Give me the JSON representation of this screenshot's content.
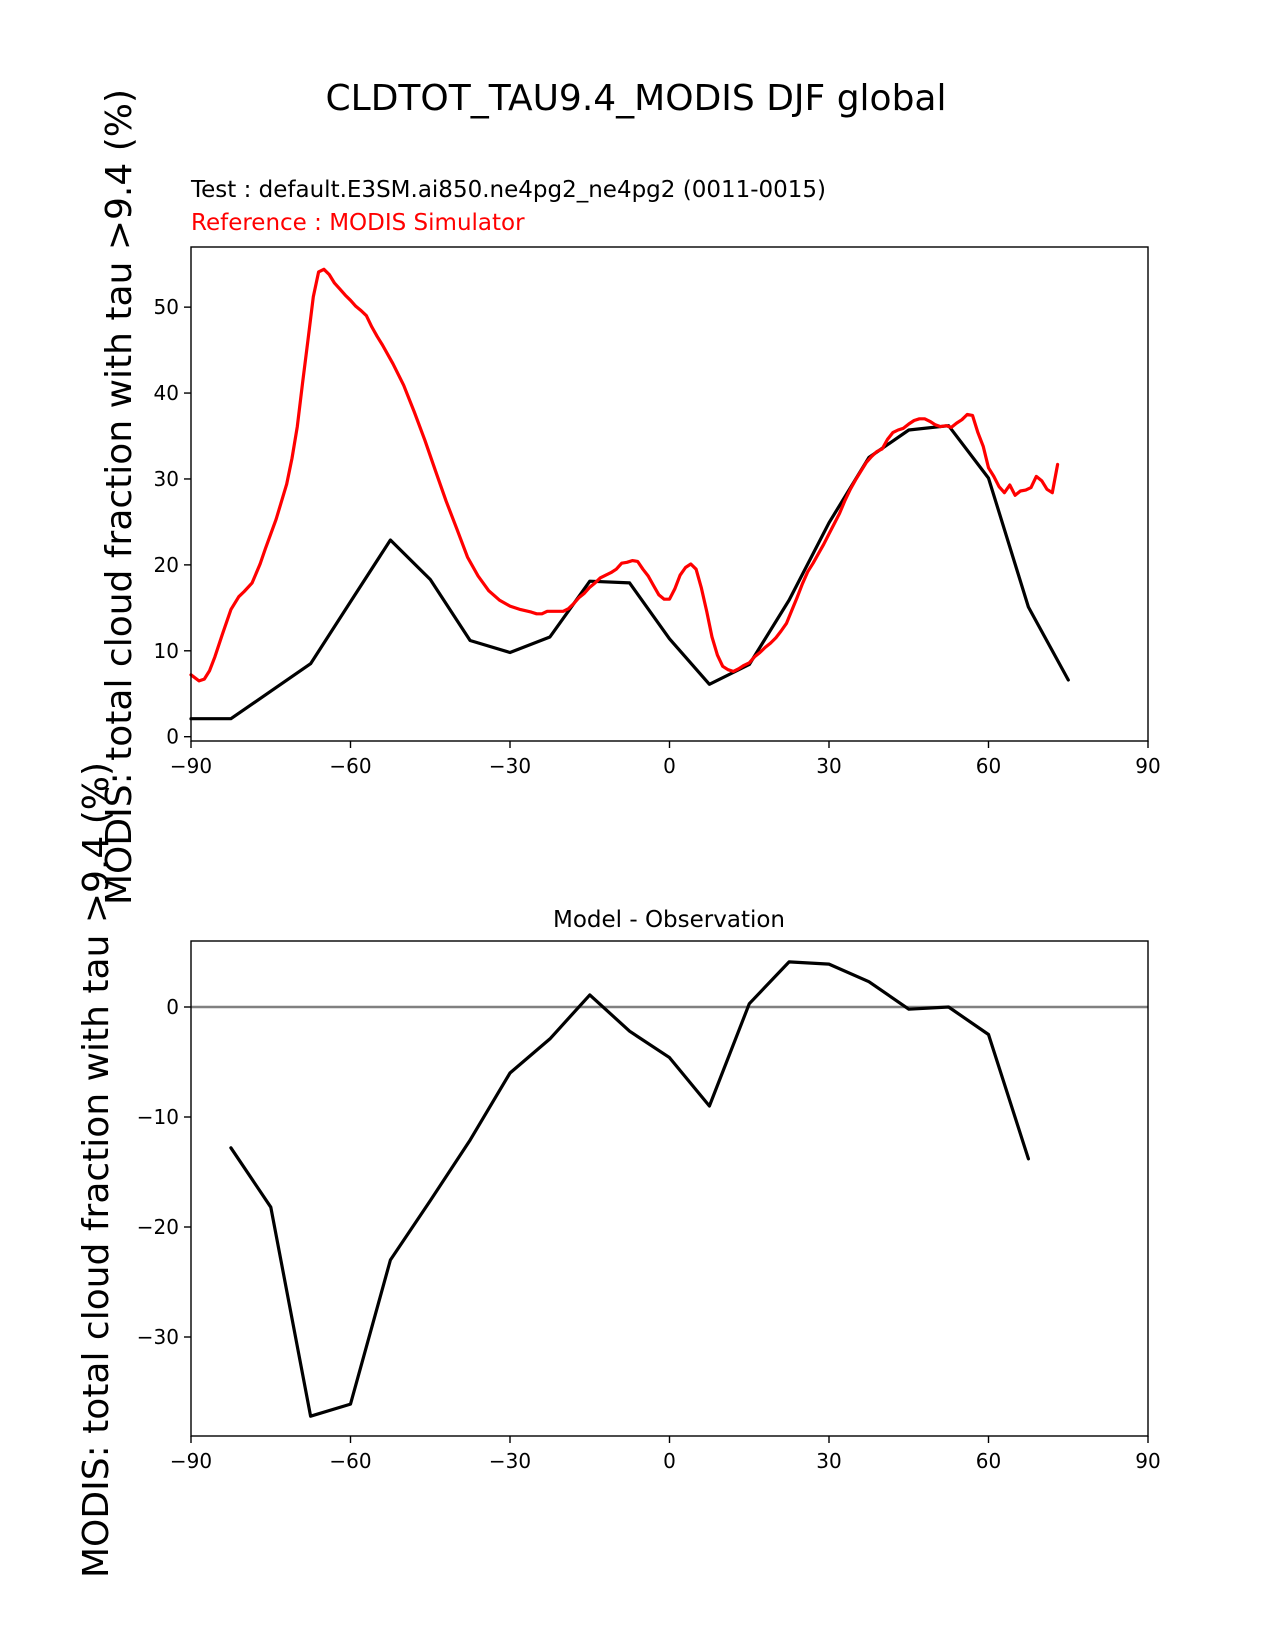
{
  "figure": {
    "title": "CLDTOT_TAU9.4_MODIS DJF global",
    "ylabel": "MODIS: total cloud fraction with tau >9.4 (%)"
  },
  "chart_data": [
    {
      "type": "line",
      "test_label": "Test : default.E3SM.ai850.ne4pg2_ne4pg2 (0011-0015)",
      "reference_label": "Reference : MODIS Simulator",
      "ylabel": "MODIS: total cloud fraction with tau >9.4 (%)",
      "xlim": [
        -90,
        90
      ],
      "ylim": [
        -0.5,
        57
      ],
      "xticks": [
        "−90",
        "−60",
        "−30",
        "0",
        "30",
        "60",
        "90"
      ],
      "yticks": [
        "0",
        "10",
        "20",
        "30",
        "40",
        "50"
      ],
      "series": [
        {
          "color": "#000000",
          "x": [
            -90,
            -82.5,
            -75,
            -67.5,
            -60,
            -52.5,
            -45,
            -37.5,
            -30,
            -22.5,
            -15,
            -7.5,
            0,
            7.5,
            15,
            22.5,
            30,
            37.5,
            45,
            52.5,
            60,
            67.5,
            75
          ],
          "y": [
            2.1,
            2.1,
            5.3,
            8.5,
            15.7,
            22.9,
            18.3,
            11.2,
            9.8,
            11.6,
            18.1,
            17.9,
            11.4,
            6.1,
            8.4,
            15.9,
            24.9,
            32.5,
            35.7,
            36.2,
            30.1,
            15.1,
            6.6
          ]
        },
        {
          "color": "#ff0000",
          "x": [
            -90,
            -88.5,
            -87.5,
            -86.5,
            -85.5,
            -84,
            -82.5,
            -81,
            -80,
            -78.5,
            -77,
            -76,
            -74,
            -72,
            -71,
            -70,
            -69,
            -68,
            -67,
            -66,
            -65,
            -64,
            -63,
            -62,
            -61,
            -60,
            -59,
            -58,
            -57,
            -56,
            -55,
            -54,
            -52,
            -50,
            -48,
            -46,
            -44,
            -42,
            -40,
            -38,
            -36,
            -34,
            -32,
            -30,
            -28,
            -26,
            -25,
            -24,
            -23,
            -22,
            -21,
            -20,
            -19,
            -18,
            -17,
            -16,
            -15,
            -14,
            -13,
            -12,
            -11,
            -10,
            -9,
            -8,
            -7,
            -6,
            -5,
            -4,
            -3,
            -2,
            -1,
            0,
            1,
            2,
            3,
            4,
            5,
            6,
            7,
            8,
            9,
            10,
            11,
            12,
            13,
            14,
            15,
            16,
            17,
            18,
            19,
            20,
            21,
            22,
            23,
            24,
            25,
            26,
            27,
            28,
            29,
            30,
            31,
            32,
            33,
            34,
            35,
            36,
            37,
            38,
            39,
            40,
            41,
            42,
            43,
            44,
            45,
            46,
            47,
            48,
            49,
            50,
            51,
            52,
            53,
            54,
            55,
            56,
            57,
            58,
            59,
            60,
            61,
            62,
            63,
            64,
            65,
            66,
            67,
            68,
            69,
            70,
            71,
            72,
            73
          ],
          "y": [
            7.2,
            6.5,
            6.7,
            7.7,
            9.3,
            12.1,
            14.8,
            16.3,
            16.9,
            17.9,
            20.1,
            21.9,
            25.3,
            29.4,
            32.4,
            36.1,
            41.2,
            46.2,
            51.2,
            54.1,
            54.4,
            53.8,
            52.8,
            52.1,
            51.4,
            50.8,
            50.1,
            49.6,
            49.0,
            47.7,
            46.6,
            45.6,
            43.4,
            40.9,
            37.8,
            34.5,
            30.9,
            27.4,
            24.2,
            20.9,
            18.7,
            17.0,
            15.9,
            15.2,
            14.8,
            14.5,
            14.3,
            14.3,
            14.6,
            14.6,
            14.6,
            14.6,
            14.9,
            15.5,
            16.2,
            16.7,
            17.4,
            17.9,
            18.5,
            18.8,
            19.1,
            19.5,
            20.2,
            20.3,
            20.5,
            20.4,
            19.5,
            18.7,
            17.6,
            16.5,
            16.0,
            16.0,
            17.2,
            18.8,
            19.7,
            20.1,
            19.5,
            17.3,
            14.6,
            11.6,
            9.5,
            8.2,
            7.8,
            7.6,
            7.9,
            8.3,
            8.6,
            9.3,
            9.8,
            10.4,
            10.9,
            11.5,
            12.3,
            13.2,
            14.7,
            16.2,
            17.8,
            19.2,
            20.2,
            21.3,
            22.4,
            23.6,
            24.8,
            26.0,
            27.5,
            28.8,
            29.9,
            30.9,
            31.9,
            32.6,
            33.2,
            33.5,
            34.6,
            35.4,
            35.7,
            35.9,
            36.4,
            36.8,
            37.0,
            37.0,
            36.7,
            36.3,
            36.1,
            36.2,
            36.0,
            36.5,
            36.9,
            37.5,
            37.4,
            35.4,
            33.8,
            31.3,
            30.3,
            29.1,
            28.4,
            29.3,
            28.1,
            28.6,
            28.7,
            29.0,
            30.3,
            29.8,
            28.8,
            28.4,
            31.7
          ]
        }
      ]
    },
    {
      "type": "line",
      "title": "Model - Observation",
      "ylabel": "MODIS: total cloud fraction with tau >9.4 (%)",
      "xlim": [
        -90,
        90
      ],
      "ylim": [
        -39,
        6
      ],
      "xticks": [
        "−90",
        "−60",
        "−30",
        "0",
        "30",
        "60",
        "90"
      ],
      "yticks": [
        "0",
        "−10",
        "−20",
        "−30"
      ],
      "zero_line_color": "#808080",
      "series": [
        {
          "color": "#000000",
          "x": [
            -82.5,
            -75,
            -67.5,
            -60,
            -52.5,
            -45,
            -37.5,
            -30,
            -22.5,
            -15,
            -7.5,
            0,
            7.5,
            15,
            22.5,
            30,
            37.5,
            45,
            52.5,
            60,
            67.5
          ],
          "y": [
            -12.8,
            -18.2,
            -37.2,
            -36.1,
            -23.0,
            -17.6,
            -12.1,
            -6.0,
            -2.9,
            1.1,
            -2.2,
            -4.6,
            -9.0,
            0.3,
            4.1,
            3.9,
            2.3,
            -0.2,
            0.0,
            -2.5,
            -13.8
          ]
        }
      ]
    }
  ]
}
